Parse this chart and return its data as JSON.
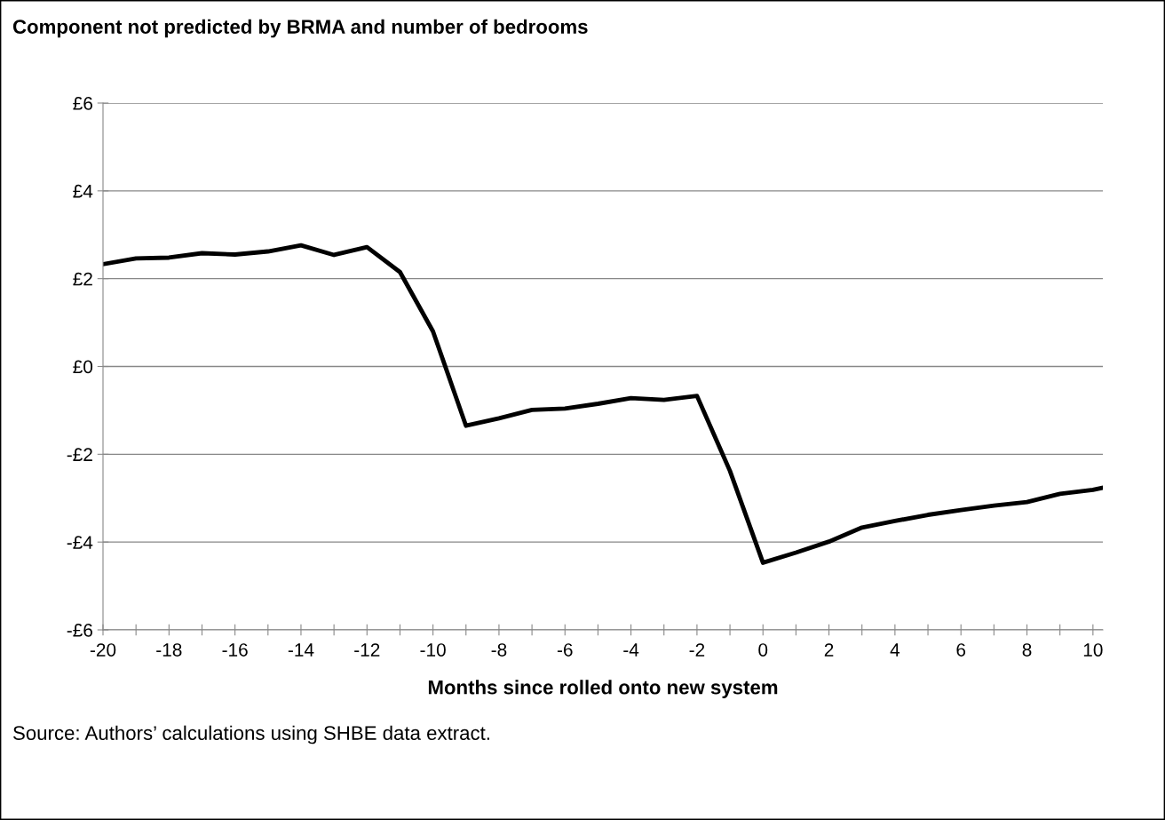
{
  "chart_data": {
    "type": "line",
    "title": "Component not predicted by BRMA and number of bedrooms",
    "xlabel": "Months since rolled onto new system",
    "annotations": [
      "Source: Authors’ calculations using SHBE data extract."
    ],
    "x": [
      -20,
      -19,
      -18,
      -17,
      -16,
      -15,
      -14,
      -13,
      -12,
      -11,
      -10,
      -9,
      -8,
      -7,
      -6,
      -5,
      -4,
      -3,
      -2,
      -1,
      0,
      1,
      2,
      3,
      4,
      5,
      6,
      7,
      8,
      9,
      10,
      10.3
    ],
    "series": [
      {
        "color": "#000000",
        "values": [
          2.33,
          2.46,
          2.48,
          2.58,
          2.55,
          2.62,
          2.76,
          2.54,
          2.72,
          2.15,
          0.8,
          -1.35,
          -1.18,
          -0.99,
          -0.96,
          -0.85,
          -0.72,
          -0.76,
          -0.67,
          -2.38,
          -4.47,
          -4.24,
          -3.99,
          -3.67,
          -3.52,
          -3.38,
          -3.27,
          -3.17,
          -3.09,
          -2.9,
          -2.81,
          -2.76
        ]
      }
    ],
    "xlim": [
      -20,
      10.3
    ],
    "xticks": [
      -20,
      {
        "value": -19,
        "label": null
      },
      -18,
      {
        "value": -17,
        "label": null
      },
      -16,
      {
        "value": -15,
        "label": null
      },
      -14,
      {
        "value": -13,
        "label": null
      },
      -12,
      {
        "value": -11,
        "label": null
      },
      -10,
      {
        "value": -9,
        "label": null
      },
      -8,
      {
        "value": -7,
        "label": null
      },
      -6,
      {
        "value": -5,
        "label": null
      },
      -4,
      {
        "value": -3,
        "label": null
      },
      -2,
      {
        "value": -1,
        "label": null
      },
      0,
      {
        "value": 1,
        "label": null
      },
      2,
      {
        "value": 3,
        "label": null
      },
      4,
      {
        "value": 5,
        "label": null
      },
      6,
      {
        "value": 7,
        "label": null
      },
      8,
      {
        "value": 9,
        "label": null
      },
      10
    ],
    "ylim": [
      -6,
      6
    ],
    "yticks": [
      {
        "value": -6,
        "label": "-£6"
      },
      {
        "value": -4,
        "label": "-£4"
      },
      {
        "value": -2,
        "label": "-£2"
      },
      {
        "value": 0,
        "label": "£0"
      },
      {
        "value": 2,
        "label": "£2"
      },
      {
        "value": 4,
        "label": "£4"
      },
      {
        "value": 6,
        "label": "£6"
      }
    ],
    "grid": "y",
    "marker": "none",
    "line_style": "solid",
    "legend": false
  }
}
